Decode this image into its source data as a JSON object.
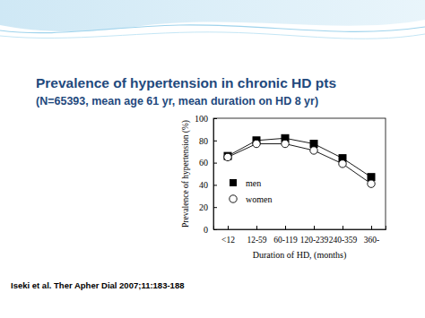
{
  "chart_data": {
    "type": "line",
    "title": "Prevalence of hypertension in chronic HD pts",
    "subtitle": "(N=65393, mean age 61 yr, mean duration on HD 8 yr)",
    "x_label": "Duration of HD, (months)",
    "y_label": "Prevalence of hypertension (%)",
    "annotations": [
      "Iseki et al. Ther Apher Dial 2007;11:183-188"
    ],
    "categories": [
      "<12",
      "12-59",
      "60-119",
      "120-239",
      "240-359",
      "360-"
    ],
    "series": [
      {
        "name": "men",
        "color": "#000000",
        "marker": "square",
        "values": [
          66,
          80,
          82,
          77,
          64,
          47
        ]
      },
      {
        "name": "women",
        "color": "#000000",
        "marker": "open-circle",
        "values": [
          65,
          77,
          77,
          71,
          59,
          41
        ]
      }
    ],
    "ylim": [
      0,
      100
    ],
    "yticks": [
      0,
      20,
      40,
      60,
      80,
      100
    ],
    "legend": "lower left",
    "grid": false
  }
}
